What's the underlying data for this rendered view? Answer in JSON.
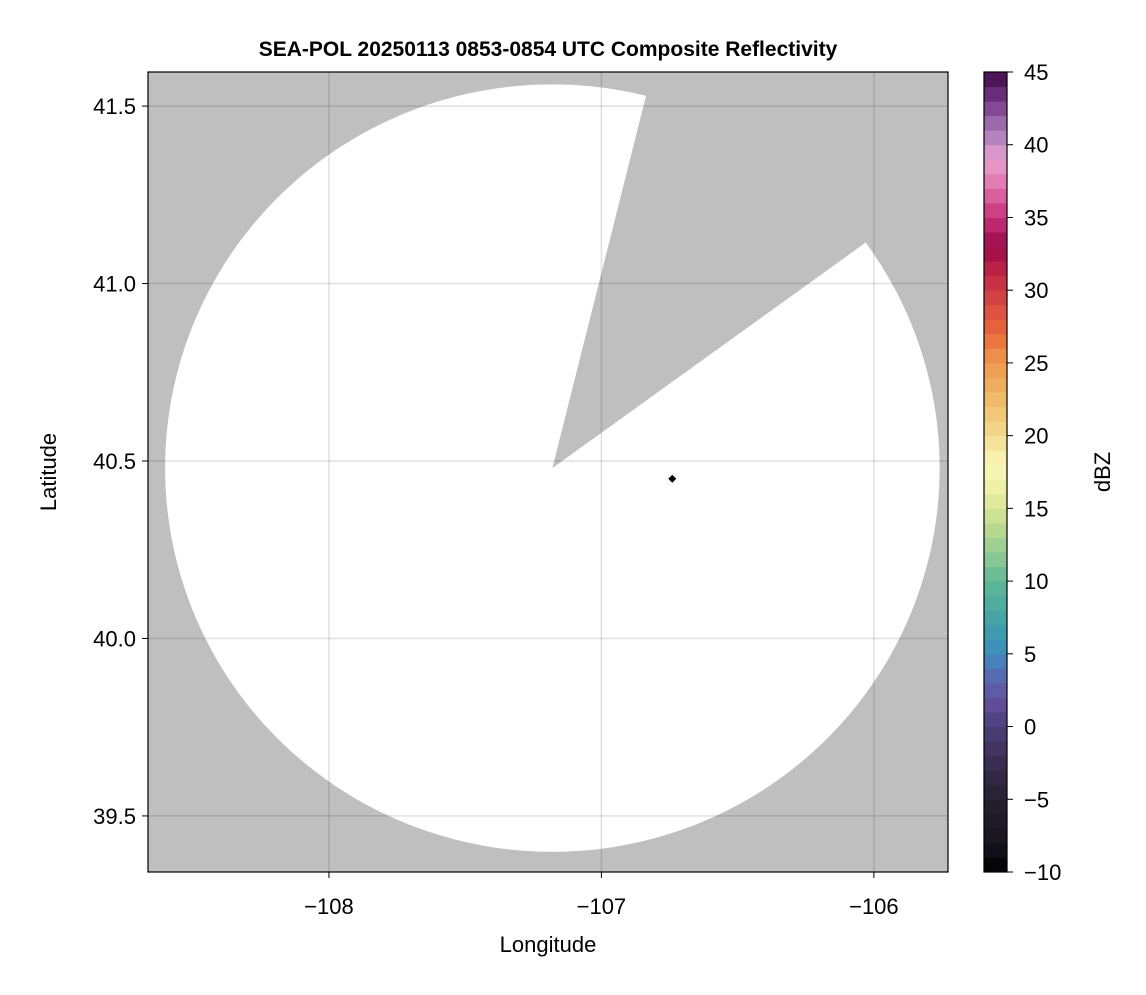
{
  "chart_data": {
    "type": "heatmap",
    "title": "SEA-POL 20250113 0853-0854 UTC Composite Reflectivity",
    "xlabel": "Longitude",
    "ylabel": "Latitude",
    "xlim": [
      -108.664,
      -105.728
    ],
    "ylim": [
      39.342,
      41.596
    ],
    "xticks": [
      -108,
      -107,
      -106
    ],
    "xtick_labels": [
      "−108",
      "−107",
      "−106"
    ],
    "yticks": [
      39.5,
      40.0,
      40.5,
      41.0,
      41.5
    ],
    "ytick_labels": [
      "39.5",
      "40.0",
      "40.5",
      "41.0",
      "41.5"
    ],
    "grid": true,
    "background_color": "#bfbfbf",
    "coverage_color": "#ffffff",
    "radar_coverage": {
      "center_lon": -107.18,
      "center_lat": 40.48,
      "range_km": 120,
      "blocked_sector_azimuth_deg": [
        14,
        54
      ]
    },
    "marker": {
      "lon": -106.74,
      "lat": 40.45,
      "shape": "diamond",
      "color": "#000000"
    },
    "colorbar": {
      "label": "dBZ",
      "range": [
        -10,
        45
      ],
      "ticks": [
        -10,
        -5,
        0,
        5,
        10,
        15,
        20,
        25,
        30,
        35,
        40,
        45
      ],
      "tick_labels": [
        "−10",
        "−5",
        "0",
        "5",
        "10",
        "15",
        "20",
        "25",
        "30",
        "35",
        "40",
        "45"
      ],
      "bin_size": 1,
      "color_stops": [
        [
          -10,
          "#000000"
        ],
        [
          -8,
          "#16141f"
        ],
        [
          -5,
          "#26202f"
        ],
        [
          -2,
          "#3d3058"
        ],
        [
          0,
          "#4c3e7a"
        ],
        [
          2,
          "#6552a0"
        ],
        [
          4,
          "#4f74bc"
        ],
        [
          5,
          "#3d8dc0"
        ],
        [
          7,
          "#41a0a8"
        ],
        [
          10,
          "#5fb896"
        ],
        [
          12,
          "#93cc92"
        ],
        [
          14,
          "#c3dc8c"
        ],
        [
          16,
          "#e8f0a0"
        ],
        [
          18,
          "#fbf7b8"
        ],
        [
          20,
          "#f2dc8e"
        ],
        [
          22,
          "#f0c070"
        ],
        [
          25,
          "#ef9a50"
        ],
        [
          27,
          "#ea6a3a"
        ],
        [
          29,
          "#d84a42"
        ],
        [
          31,
          "#c42a44"
        ],
        [
          33,
          "#9c0a48"
        ],
        [
          35,
          "#c8307a"
        ],
        [
          37,
          "#e070a8"
        ],
        [
          39,
          "#e8a0d0"
        ],
        [
          41,
          "#a47ab8"
        ],
        [
          43,
          "#7a3888"
        ],
        [
          45,
          "#3c0a48"
        ]
      ]
    }
  }
}
